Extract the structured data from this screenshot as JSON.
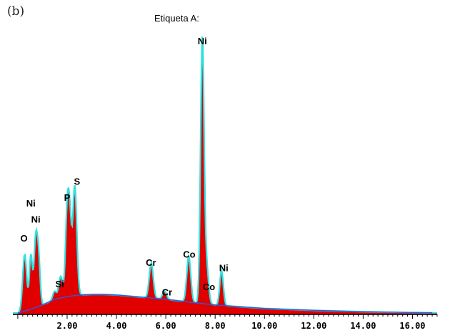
{
  "panel_label": "(b)",
  "chart_data": {
    "type": "area",
    "title": "Etiqueta A:",
    "xlabel": "",
    "ylabel": "",
    "xlim": [
      -0.2,
      17.0
    ],
    "ylim": [
      0,
      100
    ],
    "x_ticks": [
      2,
      4,
      6,
      8,
      10,
      12,
      14,
      16
    ],
    "x_tick_labels": [
      "2.00",
      "4.00",
      "6.00",
      "8.00",
      "10.00",
      "12.00",
      "14.00",
      "16.00"
    ],
    "grid": false,
    "legend": "none",
    "colors": {
      "fill": "#e00000",
      "spectrum_line": "#33e0e0",
      "background_line": "#3355dd",
      "axis": "#000000"
    },
    "background_points": {
      "x": [
        0.0,
        0.5,
        1.0,
        1.5,
        2.0,
        2.5,
        3.0,
        3.5,
        4.0,
        5.0,
        6.0,
        7.0,
        8.0,
        10.0,
        12.0,
        14.0,
        16.0,
        16.8
      ],
      "y": [
        0.5,
        1.8,
        3.5,
        5.6,
        6.6,
        7.2,
        7.4,
        7.4,
        7.2,
        6.4,
        5.6,
        4.5,
        3.5,
        2.2,
        1.5,
        1.0,
        0.7,
        0.6
      ]
    },
    "peaks": [
      {
        "x": 0.28,
        "height": 21,
        "width": 0.08
      },
      {
        "x": 0.53,
        "height": 20,
        "width": 0.06
      },
      {
        "x": 0.73,
        "height": 26,
        "width": 0.07
      },
      {
        "x": 0.85,
        "height": 15,
        "width": 0.06
      },
      {
        "x": 1.49,
        "height": 3,
        "width": 0.07
      },
      {
        "x": 1.74,
        "height": 8,
        "width": 0.08
      },
      {
        "x": 2.01,
        "height": 34,
        "width": 0.07
      },
      {
        "x": 2.12,
        "height": 22,
        "width": 0.06
      },
      {
        "x": 2.31,
        "height": 41,
        "width": 0.08
      },
      {
        "x": 5.41,
        "height": 13,
        "width": 0.08
      },
      {
        "x": 5.95,
        "height": 3,
        "width": 0.08
      },
      {
        "x": 6.93,
        "height": 17,
        "width": 0.08
      },
      {
        "x": 7.48,
        "height": 98,
        "width": 0.07
      },
      {
        "x": 7.65,
        "height": 14,
        "width": 0.08
      },
      {
        "x": 8.26,
        "height": 13,
        "width": 0.07
      }
    ],
    "annotations": [
      {
        "text": "O",
        "x": 0.25,
        "y": 27
      },
      {
        "text": "Ni",
        "x": 0.53,
        "y": 40
      },
      {
        "text": "Ni",
        "x": 0.73,
        "y": 34
      },
      {
        "text": "P",
        "x": 2.0,
        "y": 42
      },
      {
        "text": "S",
        "x": 2.4,
        "y": 48
      },
      {
        "text": "Si",
        "x": 1.7,
        "y": 10
      },
      {
        "text": "Cr",
        "x": 5.4,
        "y": 18
      },
      {
        "text": "Cr",
        "x": 6.05,
        "y": 7
      },
      {
        "text": "Co",
        "x": 6.95,
        "y": 21
      },
      {
        "text": "Ni",
        "x": 7.48,
        "y": 100
      },
      {
        "text": "Co",
        "x": 7.75,
        "y": 9
      },
      {
        "text": "Ni",
        "x": 8.35,
        "y": 16
      }
    ]
  }
}
